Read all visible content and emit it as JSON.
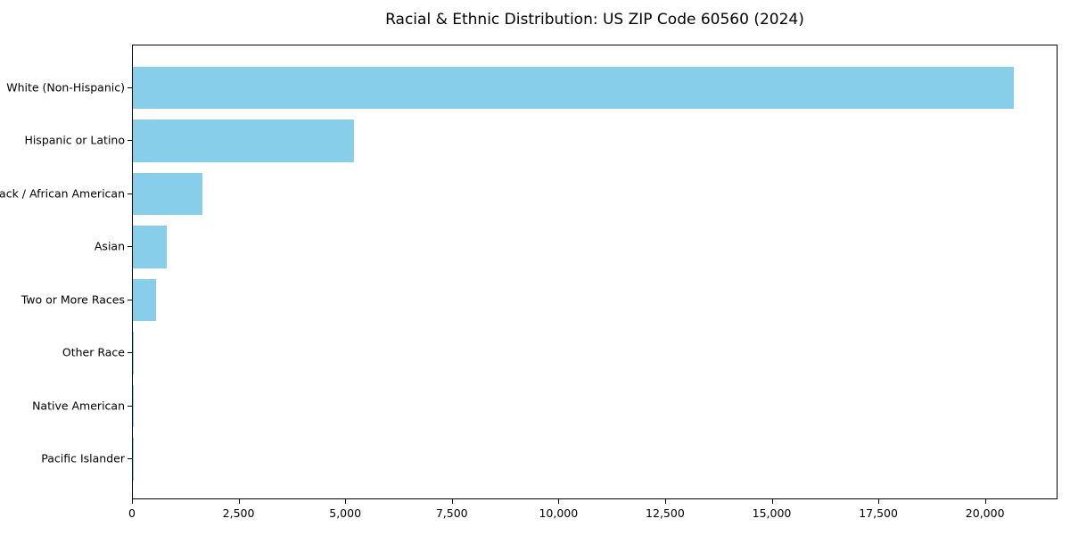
{
  "figure": {
    "background": "#ffffff"
  },
  "chart_data": {
    "type": "bar",
    "orientation": "horizontal",
    "title": "Racial & Ethnic Distribution: US ZIP Code 60560 (2024)",
    "xlabel": "",
    "ylabel": "",
    "grid": false,
    "legend": null,
    "bar_color": "#87CEEB",
    "axis_color": "#000000",
    "text_color": "#000000",
    "categories": [
      "White (Non-Hispanic)",
      "Hispanic or Latino",
      "Black / African American",
      "Asian",
      "Two or More Races",
      "Other Race",
      "Native American",
      "Pacific Islander"
    ],
    "values": [
      20650,
      5180,
      1630,
      800,
      550,
      30,
      20,
      5
    ],
    "xlim": [
      0,
      21700
    ],
    "x_ticks": [
      {
        "value": 0,
        "label": "0"
      },
      {
        "value": 2500,
        "label": "2,500"
      },
      {
        "value": 5000,
        "label": "5,000"
      },
      {
        "value": 7500,
        "label": "7,500"
      },
      {
        "value": 10000,
        "label": "10,000"
      },
      {
        "value": 12500,
        "label": "12,500"
      },
      {
        "value": 15000,
        "label": "15,000"
      },
      {
        "value": 17500,
        "label": "17,500"
      },
      {
        "value": 20000,
        "label": "20,000"
      }
    ]
  }
}
